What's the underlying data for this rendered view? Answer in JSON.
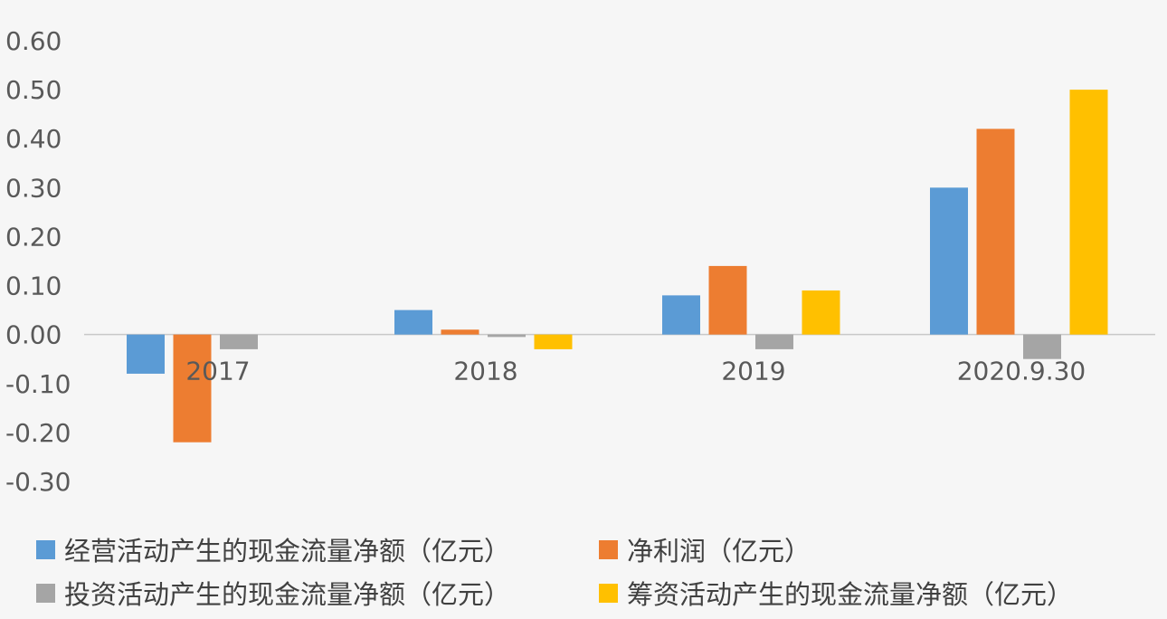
{
  "chart_data": {
    "type": "bar",
    "categories": [
      "2017",
      "2018",
      "2019",
      "2020.9.30"
    ],
    "series": [
      {
        "name": "经营活动产生的现金流量净额（亿元）",
        "color": "#5b9bd5",
        "values": [
          -0.08,
          0.05,
          0.08,
          0.3
        ]
      },
      {
        "name": "净利润（亿元）",
        "color": "#ed7d31",
        "values": [
          -0.22,
          0.01,
          0.14,
          0.42
        ]
      },
      {
        "name": "投资活动产生的现金流量净额（亿元）",
        "color": "#a5a5a5",
        "values": [
          -0.03,
          -0.005,
          -0.03,
          -0.05
        ]
      },
      {
        "name": "筹资活动产生的现金流量净额（亿元）",
        "color": "#ffc000",
        "values": [
          0,
          -0.03,
          0.09,
          0.5
        ]
      }
    ],
    "yticks": [
      "0.60",
      "0.50",
      "0.40",
      "0.30",
      "0.20",
      "0.10",
      "0.00",
      "-0.10",
      "-0.20",
      "-0.30"
    ],
    "ylim": [
      -0.3,
      0.6
    ],
    "legend_position": "bottom",
    "grid": false
  }
}
